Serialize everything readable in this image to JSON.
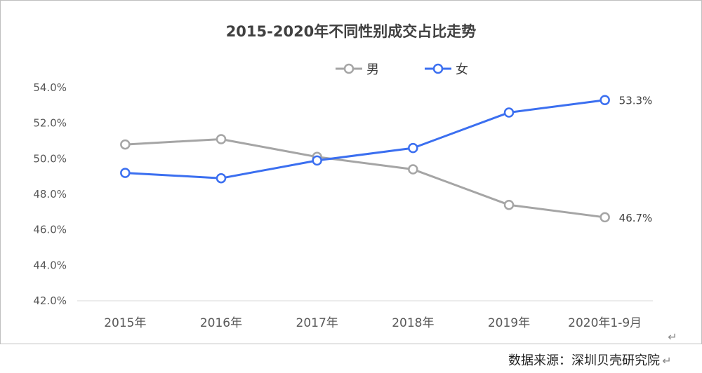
{
  "chart_data": {
    "type": "line",
    "title": "2015-2020年不同性别成交占比走势",
    "categories": [
      "2015年",
      "2016年",
      "2017年",
      "2018年",
      "2019年",
      "2020年1-9月"
    ],
    "series": [
      {
        "name": "男",
        "color": "#a5a5a5",
        "values": [
          50.8,
          51.1,
          50.1,
          49.4,
          47.4,
          46.7
        ],
        "end_label": "46.7%"
      },
      {
        "name": "女",
        "color": "#3b6ff0",
        "values": [
          49.2,
          48.9,
          49.9,
          50.6,
          52.6,
          53.3
        ],
        "end_label": "53.3%"
      }
    ],
    "ylim": [
      42.0,
      54.0
    ],
    "yticks": [
      54.0,
      52.0,
      50.0,
      48.0,
      46.0,
      44.0,
      42.0
    ],
    "ytick_labels": [
      "54.0%",
      "52.0%",
      "50.0%",
      "48.0%",
      "46.0%",
      "44.0%",
      "42.0%"
    ],
    "legend_position": "top-center",
    "grid": false
  },
  "footer": {
    "source": "数据来源：深圳贝壳研究院",
    "return_mark": "↵"
  }
}
